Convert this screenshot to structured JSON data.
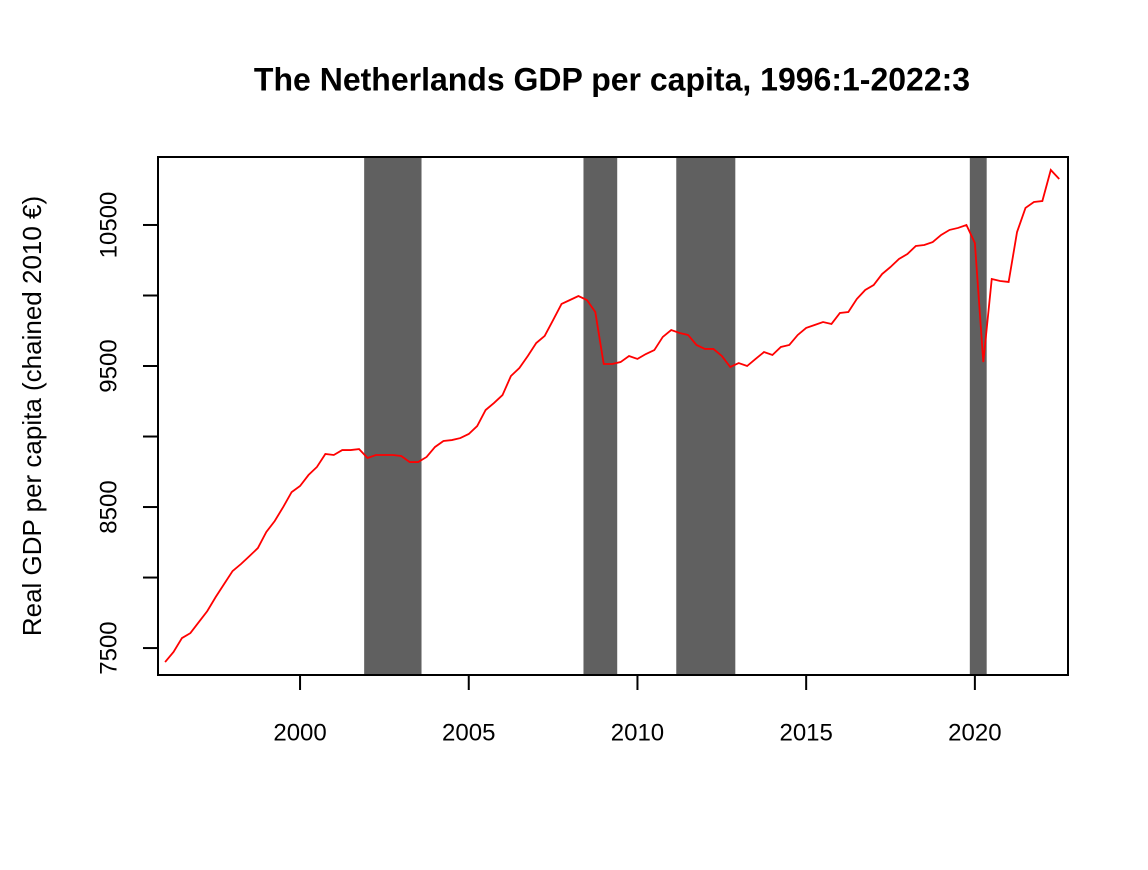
{
  "chart_data": {
    "type": "line",
    "title": "The Netherlands GDP per capita, 1996:1-2022:3",
    "y_label": "Real GDP per capita (chained 2010 €)",
    "x": [
      1996,
      1996.25,
      1996.5,
      1996.75,
      1997,
      1997.25,
      1997.5,
      1997.75,
      1998,
      1998.25,
      1998.5,
      1998.75,
      1999,
      1999.25,
      1999.5,
      1999.75,
      2000,
      2000.25,
      2000.5,
      2000.75,
      2001,
      2001.25,
      2001.5,
      2001.75,
      2002,
      2002.25,
      2002.5,
      2002.75,
      2003,
      2003.25,
      2003.5,
      2003.75,
      2004,
      2004.25,
      2004.5,
      2004.75,
      2005,
      2005.25,
      2005.5,
      2005.75,
      2006,
      2006.25,
      2006.5,
      2006.75,
      2007,
      2007.25,
      2007.5,
      2007.75,
      2008,
      2008.25,
      2008.5,
      2008.75,
      2009,
      2009.25,
      2009.5,
      2009.75,
      2010,
      2010.25,
      2010.5,
      2010.75,
      2011,
      2011.25,
      2011.5,
      2011.75,
      2012,
      2012.25,
      2012.5,
      2012.75,
      2013,
      2013.25,
      2013.5,
      2013.75,
      2014,
      2014.25,
      2014.5,
      2014.75,
      2015,
      2015.25,
      2015.5,
      2015.75,
      2016,
      2016.25,
      2016.5,
      2016.75,
      2017,
      2017.25,
      2017.5,
      2017.75,
      2018,
      2018.25,
      2018.5,
      2018.75,
      2019,
      2019.25,
      2019.5,
      2019.75,
      2020,
      2020.25,
      2020.5,
      2020.75,
      2021,
      2021.25,
      2021.5,
      2021.75,
      2022,
      2022.25,
      2022.5
    ],
    "series": [
      {
        "color": "#ff0000",
        "values": [
          7401,
          7472,
          7571,
          7606,
          7684,
          7762,
          7862,
          7954,
          8046,
          8096,
          8152,
          8209,
          8323,
          8401,
          8500,
          8606,
          8649,
          8727,
          8784,
          8876,
          8869,
          8904,
          8904,
          8911,
          8848,
          8869,
          8869,
          8869,
          8862,
          8819,
          8819,
          8855,
          8926,
          8968,
          8975,
          8989,
          9018,
          9074,
          9188,
          9238,
          9294,
          9429,
          9486,
          9571,
          9663,
          9713,
          9826,
          9940,
          9968,
          9996,
          9968,
          9883,
          9514,
          9514,
          9528,
          9571,
          9550,
          9585,
          9613,
          9706,
          9755,
          9734,
          9720,
          9649,
          9621,
          9621,
          9571,
          9493,
          9521,
          9500,
          9550,
          9599,
          9578,
          9635,
          9649,
          9720,
          9770,
          9791,
          9812,
          9798,
          9876,
          9883,
          9975,
          10039,
          10074,
          10152,
          10202,
          10259,
          10294,
          10351,
          10358,
          10379,
          10429,
          10465,
          10479,
          10500,
          10372,
          9528,
          10117,
          10103,
          10096,
          10450,
          10621,
          10663,
          10670,
          10890,
          10826
        ]
      }
    ],
    "shaded_periods": [
      [
        2001.9,
        2003.6
      ],
      [
        2008.4,
        2009.4
      ],
      [
        2011.15,
        2012.9
      ],
      [
        2019.85,
        2020.35
      ]
    ],
    "shade_color": "#606060",
    "xlim": [
      1995.79,
      2022.76
    ],
    "xticks": [
      2000,
      2005,
      2010,
      2015,
      2020
    ],
    "ylim": [
      7309,
      10982
    ],
    "yticks": [
      7500,
      8000,
      8500,
      9000,
      9500,
      10000,
      10500
    ]
  }
}
